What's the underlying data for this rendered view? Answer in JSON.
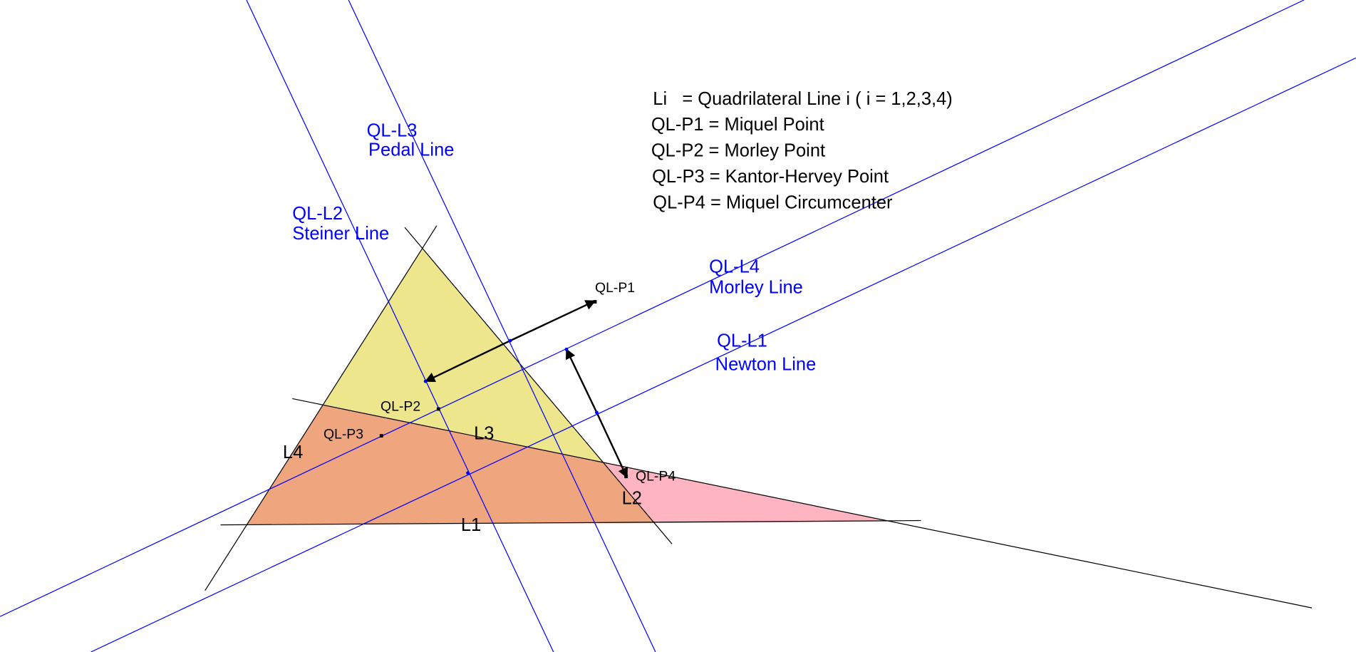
{
  "legend": [
    "Li   = Quadrilateral Line i ( i = 1,2,3,4)",
    "QL-P1 = Miquel Point",
    "QL-P2 = Morley Point",
    "QL-P3 = Kantor-Hervey Point",
    "QL-P4 = Miquel Circumcenter"
  ],
  "special_lines": [
    {
      "id": "QL-L1",
      "name": "Newton Line"
    },
    {
      "id": "QL-L2",
      "name": "Steiner Line"
    },
    {
      "id": "QL-L3",
      "name": "Pedal Line"
    },
    {
      "id": "QL-L4",
      "name": "Morley Line"
    }
  ],
  "points": [
    "QL-P1",
    "QL-P2",
    "QL-P3",
    "QL-P4"
  ],
  "quadrilateral_lines": [
    "L1",
    "L2",
    "L3",
    "L4"
  ]
}
